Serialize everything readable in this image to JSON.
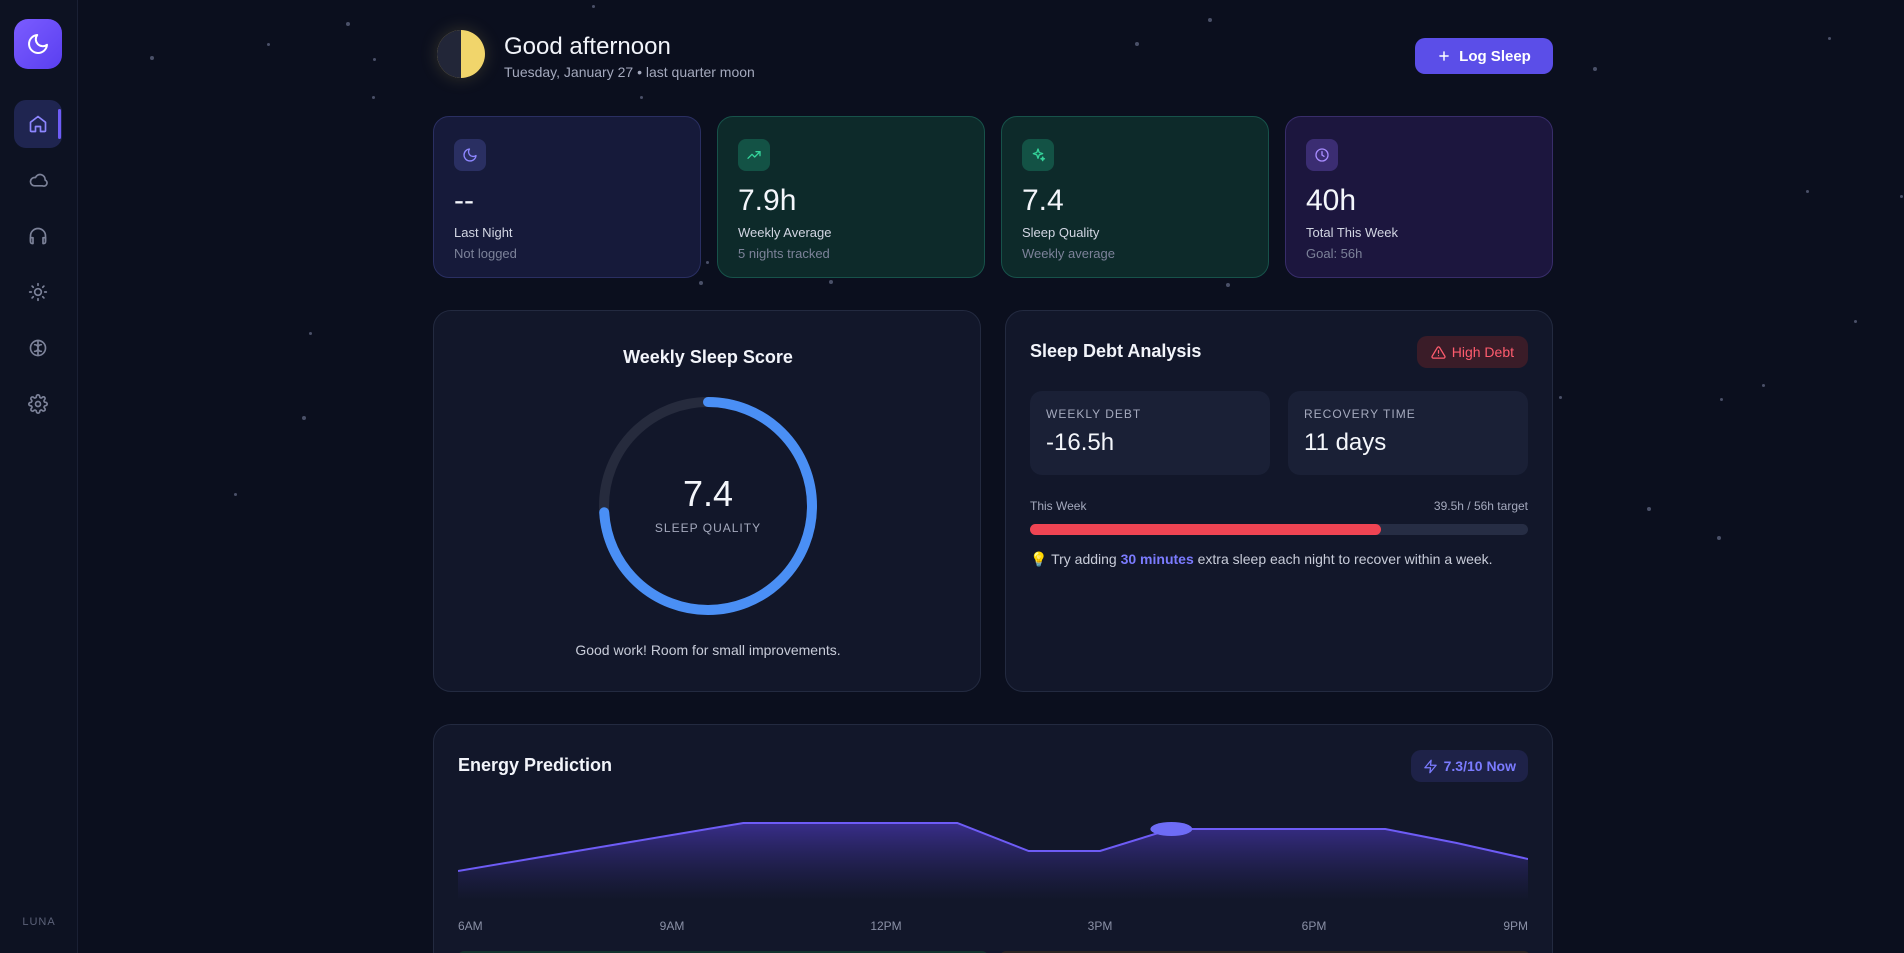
{
  "sidebar": {
    "logo_icon": "moon-icon",
    "items": [
      {
        "name": "home",
        "icon": "home-icon",
        "active": true
      },
      {
        "name": "cloud",
        "icon": "cloud-icon"
      },
      {
        "name": "sounds",
        "icon": "headphones-icon"
      },
      {
        "name": "light",
        "icon": "sun-icon"
      },
      {
        "name": "mind",
        "icon": "brain-icon"
      },
      {
        "name": "settings",
        "icon": "gear-icon"
      }
    ],
    "brand": "LUNA"
  },
  "header": {
    "greeting": "Good afternoon",
    "subtitle": "Tuesday, January 27 • last quarter moon",
    "log_button": "Log Sleep"
  },
  "stats": [
    {
      "value": "--",
      "label": "Last Night",
      "sub": "Not logged",
      "icon": "moon-icon"
    },
    {
      "value": "7.9h",
      "label": "Weekly Average",
      "sub": "5 nights tracked",
      "icon": "trending-up-icon"
    },
    {
      "value": "7.4",
      "label": "Sleep Quality",
      "sub": "Weekly average",
      "icon": "sparkles-icon"
    },
    {
      "value": "40h",
      "label": "Total This Week",
      "sub": "Goal: 56h",
      "icon": "clock-icon"
    }
  ],
  "score": {
    "title": "Weekly Sleep Score",
    "value": "7.4",
    "label": "SLEEP QUALITY",
    "fraction": 0.74,
    "message": "Good work! Room for small improvements."
  },
  "debt": {
    "title": "Sleep Debt Analysis",
    "badge": "High Debt",
    "weekly_label": "WEEKLY DEBT",
    "weekly_value": "-16.5h",
    "recovery_label": "RECOVERY TIME",
    "recovery_value": "11 days",
    "week_label": "This Week",
    "week_target": "39.5h / 56h target",
    "progress": 0.705,
    "tip_prefix": "💡 Try adding ",
    "tip_highlight": "30 minutes",
    "tip_suffix": " extra sleep each night to recover within a week."
  },
  "energy": {
    "title": "Energy Prediction",
    "badge": "7.3/10 Now",
    "x_ticks": [
      "6AM",
      "9AM",
      "12PM",
      "3PM",
      "6PM",
      "9PM"
    ]
  },
  "chart_data": {
    "type": "area",
    "x": [
      6,
      7,
      8,
      9,
      10,
      11,
      12,
      13,
      14,
      15,
      16,
      17,
      18,
      19,
      20,
      21
    ],
    "values": [
      5.2,
      5.8,
      6.4,
      7.0,
      7.6,
      7.6,
      7.6,
      7.6,
      6.2,
      6.2,
      7.3,
      7.3,
      7.3,
      7.3,
      6.6,
      5.8
    ],
    "current_x": 16,
    "ylim": [
      0,
      10
    ],
    "colors": {
      "fill": "#3b2f8f",
      "line": "#6e5cf6"
    }
  },
  "colors": {
    "accent": "#5b4ee8",
    "ring": "#4a8ff5",
    "debt_red": "#ef4453"
  }
}
